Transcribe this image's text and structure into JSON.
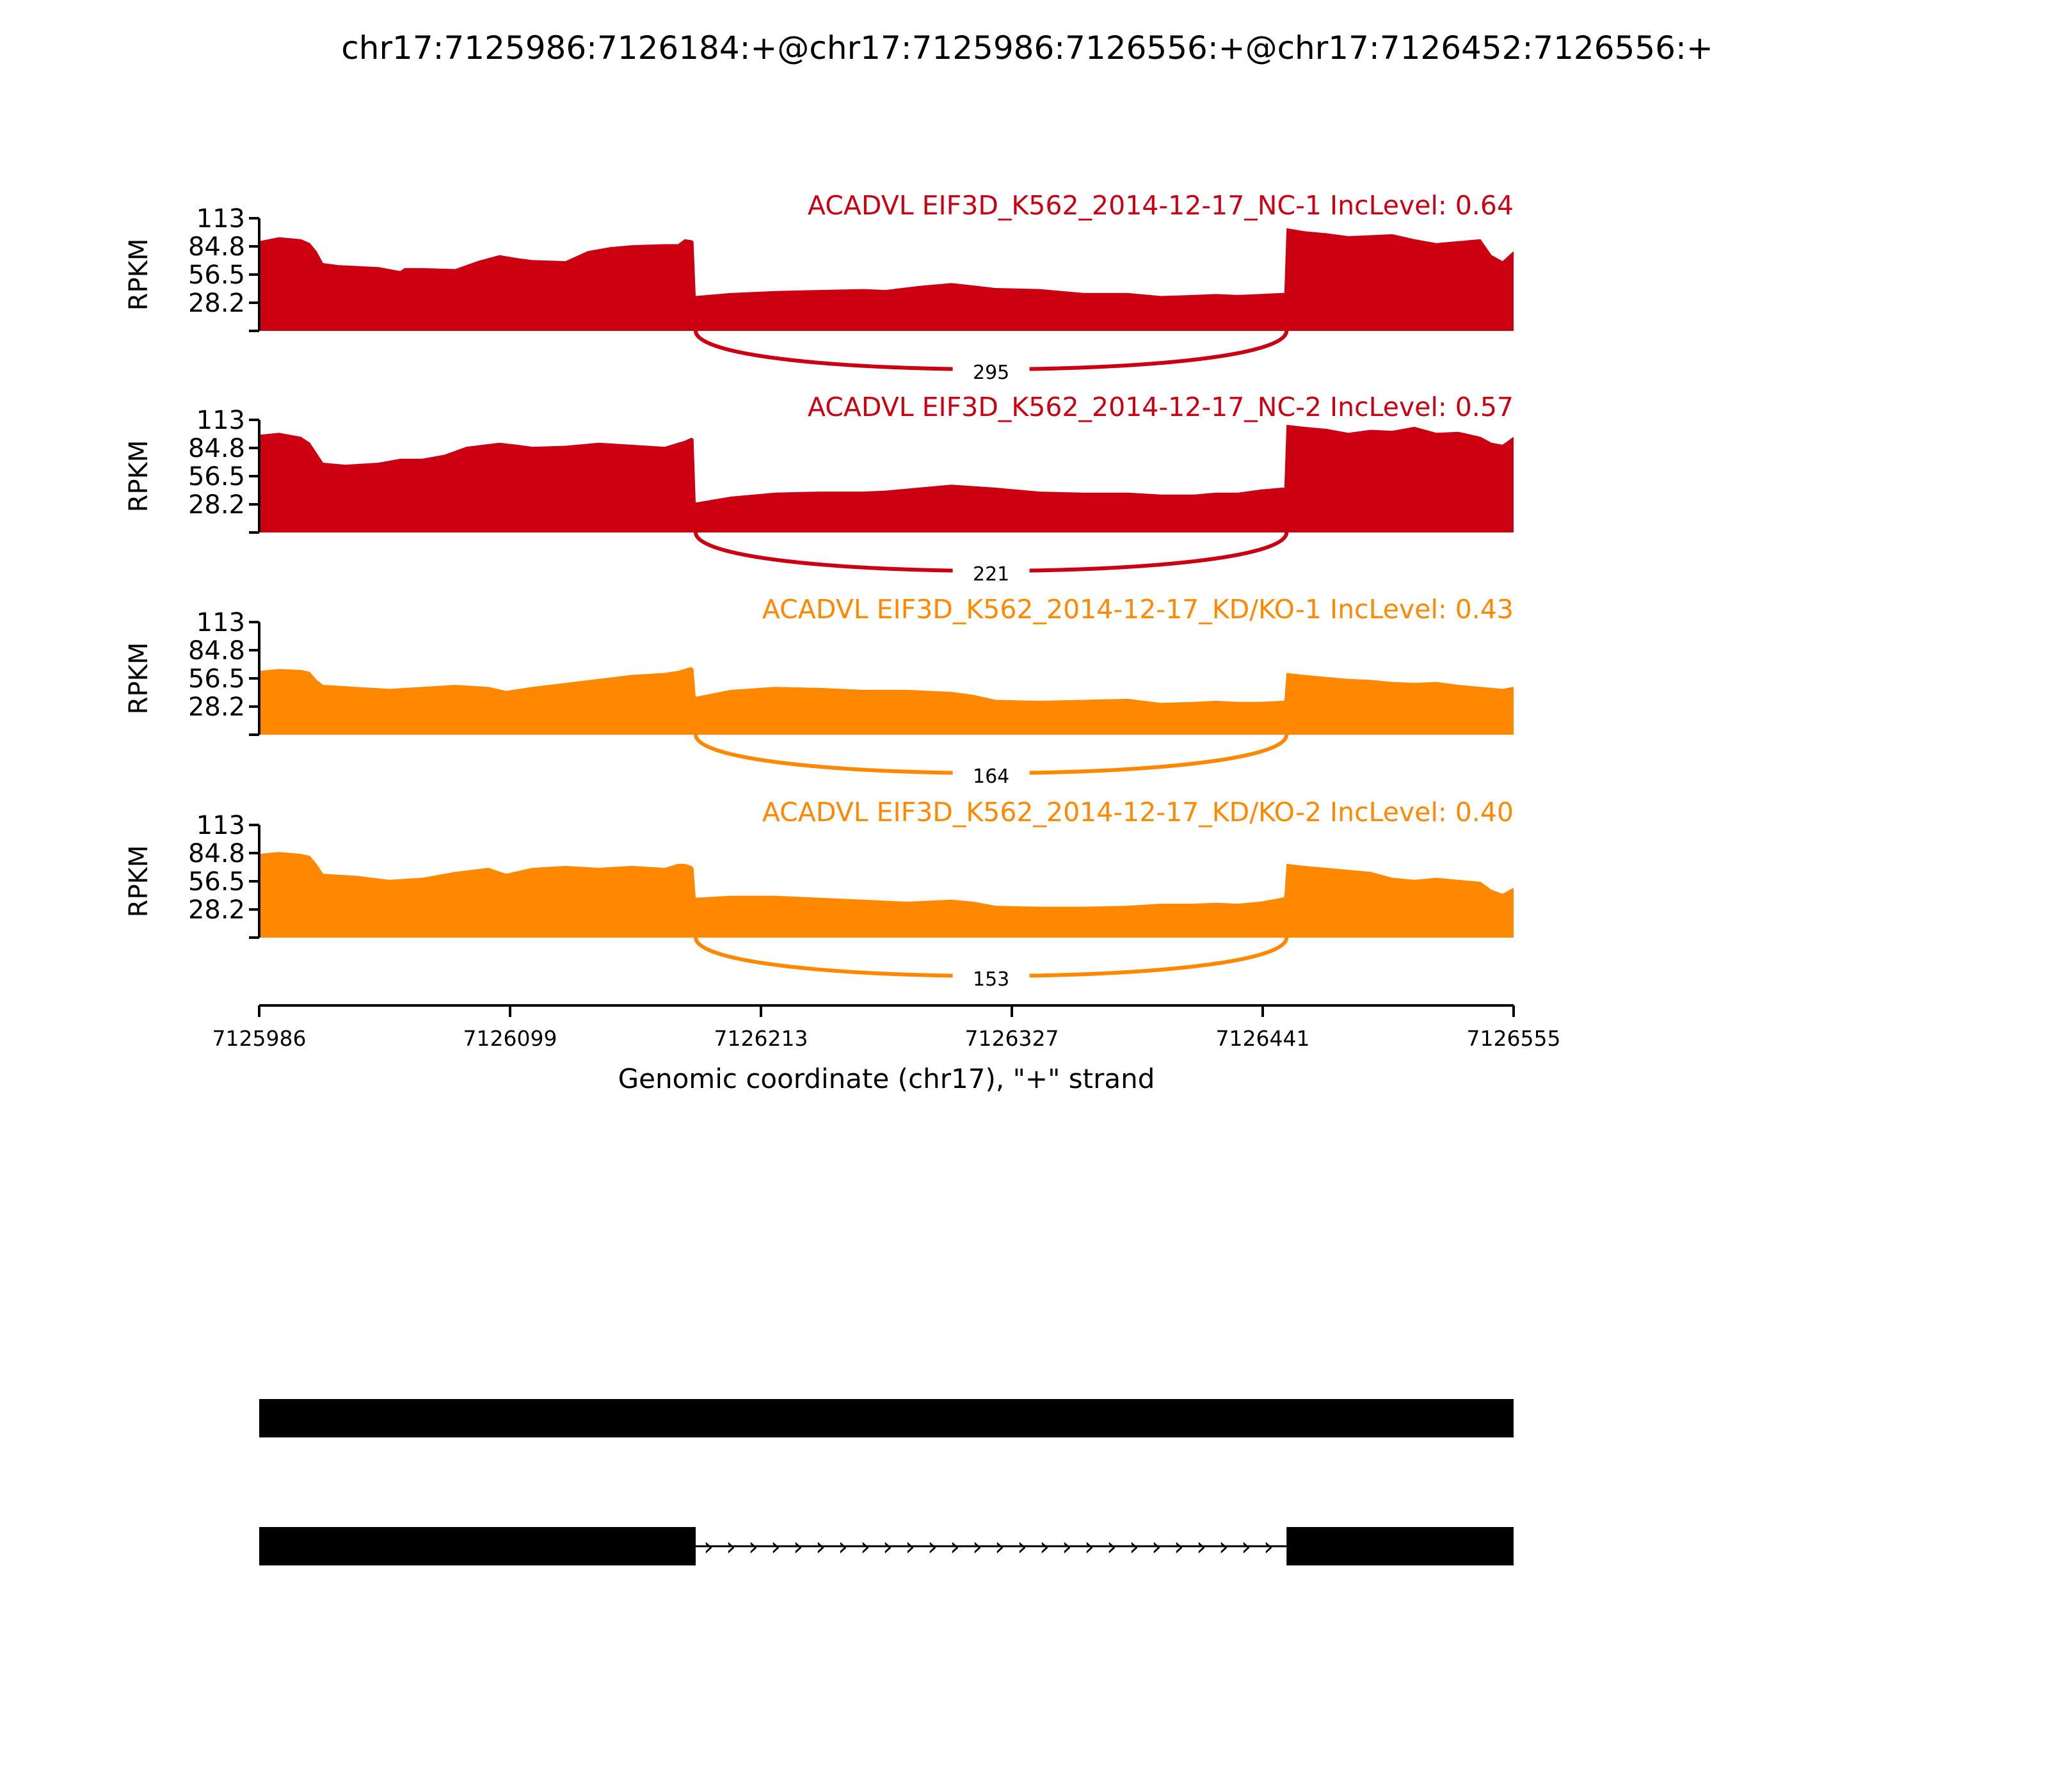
{
  "chart_data": {
    "type": "area",
    "title": "chr17:7125986:7126184:+@chr17:7125986:7126556:+@chr17:7126452:7126556:+",
    "xlabel": "Genomic coordinate (chr17), \"+\" strand",
    "ylabel": "RPKM",
    "xlim": [
      7125986,
      7126555
    ],
    "ylim": [
      0,
      113
    ],
    "x_ticks": [
      "7125986",
      "7126099",
      "7126213",
      "7126327",
      "7126441",
      "7126555"
    ],
    "y_ticks": [
      "113",
      "84.8",
      "56.5",
      "28.2"
    ],
    "series": [
      {
        "name": "ACADVL EIF3D_K562_2014-12-17_NC-1 IncLevel: 0.64",
        "color": "#cc0011",
        "junction_count": "295",
        "x": [
          7125986,
          7125995,
          7126005,
          7126009,
          7126012,
          7126015,
          7126022,
          7126040,
          7126050,
          7126052,
          7126060,
          7126075,
          7126085,
          7126095,
          7126103,
          7126110,
          7126125,
          7126135,
          7126145,
          7126155,
          7126170,
          7126176,
          7126179,
          7126182,
          7126183,
          7126184,
          7126200,
          7126220,
          7126240,
          7126260,
          7126270,
          7126285,
          7126300,
          7126320,
          7126340,
          7126360,
          7126380,
          7126395,
          7126410,
          7126420,
          7126430,
          7126440,
          7126450,
          7126451,
          7126452,
          7126460,
          7126470,
          7126480,
          7126490,
          7126500,
          7126510,
          7126520,
          7126530,
          7126540,
          7126545,
          7126550,
          7126555
        ],
        "y": [
          90,
          94,
          92,
          88,
          80,
          68,
          66,
          64,
          60,
          63,
          63,
          62,
          70,
          76,
          73,
          71,
          70,
          80,
          84,
          86,
          87,
          87,
          92,
          91,
          90,
          35,
          38,
          40,
          41,
          42,
          41,
          45,
          48,
          43,
          42,
          38,
          38,
          35,
          36,
          37,
          36,
          37,
          38,
          38,
          103,
          100,
          98,
          95,
          96,
          97,
          92,
          88,
          90,
          92,
          76,
          70,
          80
        ]
      },
      {
        "name": "ACADVL EIF3D_K562_2014-12-17_NC-2 IncLevel: 0.57",
        "color": "#cc0011",
        "junction_count": "221",
        "x": [
          7125986,
          7125995,
          7126005,
          7126009,
          7126012,
          7126015,
          7126025,
          7126040,
          7126050,
          7126060,
          7126070,
          7126080,
          7126095,
          7126103,
          7126110,
          7126125,
          7126140,
          7126155,
          7126170,
          7126176,
          7126179,
          7126182,
          7126183,
          7126184,
          7126200,
          7126220,
          7126240,
          7126260,
          7126270,
          7126285,
          7126300,
          7126320,
          7126340,
          7126360,
          7126380,
          7126395,
          7126410,
          7126420,
          7126430,
          7126440,
          7126450,
          7126451,
          7126452,
          7126460,
          7126470,
          7126480,
          7126490,
          7126500,
          7126510,
          7126520,
          7126530,
          7126540,
          7126545,
          7126550,
          7126555
        ],
        "y": [
          98,
          100,
          96,
          90,
          80,
          70,
          68,
          70,
          74,
          74,
          78,
          86,
          90,
          88,
          86,
          87,
          90,
          88,
          86,
          90,
          92,
          95,
          94,
          30,
          36,
          40,
          41,
          41,
          42,
          45,
          48,
          45,
          41,
          40,
          40,
          38,
          38,
          40,
          40,
          43,
          45,
          45,
          108,
          106,
          104,
          100,
          103,
          102,
          106,
          100,
          101,
          96,
          90,
          88,
          96
        ]
      },
      {
        "name": "ACADVL EIF3D_K562_2014-12-17_KD/KO-1 IncLevel: 0.43",
        "color": "#ff8800",
        "junction_count": "164",
        "x": [
          7125986,
          7125995,
          7126005,
          7126009,
          7126012,
          7126015,
          7126030,
          7126045,
          7126060,
          7126075,
          7126090,
          7126098,
          7126110,
          7126125,
          7126140,
          7126155,
          7126170,
          7126176,
          7126179,
          7126182,
          7126183,
          7126184,
          7126200,
          7126220,
          7126240,
          7126260,
          7126280,
          7126300,
          7126310,
          7126320,
          7126340,
          7126360,
          7126380,
          7126395,
          7126410,
          7126420,
          7126430,
          7126440,
          7126450,
          7126451,
          7126452,
          7126460,
          7126470,
          7126480,
          7126490,
          7126500,
          7126510,
          7126520,
          7126530,
          7126540,
          7126545,
          7126550,
          7126555
        ],
        "y": [
          64,
          66,
          65,
          63,
          55,
          50,
          48,
          46,
          48,
          50,
          48,
          44,
          48,
          52,
          56,
          60,
          62,
          64,
          66,
          68,
          66,
          38,
          45,
          48,
          47,
          45,
          45,
          43,
          40,
          35,
          34,
          35,
          36,
          32,
          33,
          34,
          33,
          33,
          34,
          34,
          62,
          60,
          58,
          56,
          55,
          53,
          52,
          53,
          50,
          48,
          47,
          46,
          48
        ]
      },
      {
        "name": "ACADVL EIF3D_K562_2014-12-17_KD/KO-2 IncLevel: 0.40",
        "color": "#ff8800",
        "junction_count": "153",
        "x": [
          7125986,
          7125995,
          7126005,
          7126009,
          7126012,
          7126015,
          7126030,
          7126045,
          7126060,
          7126075,
          7126090,
          7126098,
          7126110,
          7126125,
          7126140,
          7126155,
          7126170,
          7126176,
          7126179,
          7126182,
          7126183,
          7126184,
          7126200,
          7126220,
          7126240,
          7126260,
          7126280,
          7126300,
          7126310,
          7126320,
          7126340,
          7126360,
          7126380,
          7126395,
          7126410,
          7126420,
          7126430,
          7126440,
          7126450,
          7126451,
          7126452,
          7126460,
          7126470,
          7126480,
          7126490,
          7126500,
          7126510,
          7126520,
          7126530,
          7126540,
          7126545,
          7126550,
          7126555
        ],
        "y": [
          84,
          86,
          84,
          82,
          74,
          64,
          62,
          58,
          60,
          66,
          70,
          64,
          70,
          72,
          70,
          72,
          70,
          74,
          74,
          72,
          70,
          40,
          42,
          42,
          40,
          38,
          36,
          38,
          36,
          32,
          31,
          31,
          32,
          34,
          34,
          35,
          34,
          36,
          40,
          41,
          74,
          72,
          70,
          68,
          66,
          60,
          58,
          60,
          58,
          56,
          48,
          44,
          50
        ]
      }
    ],
    "gene_model": {
      "isoform_1": {
        "exons": [
          [
            7125986,
            7126555
          ]
        ]
      },
      "isoform_2": {
        "exons": [
          [
            7125986,
            7126184
          ],
          [
            7126452,
            7126555
          ]
        ],
        "intron_arrow": "›"
      }
    }
  }
}
